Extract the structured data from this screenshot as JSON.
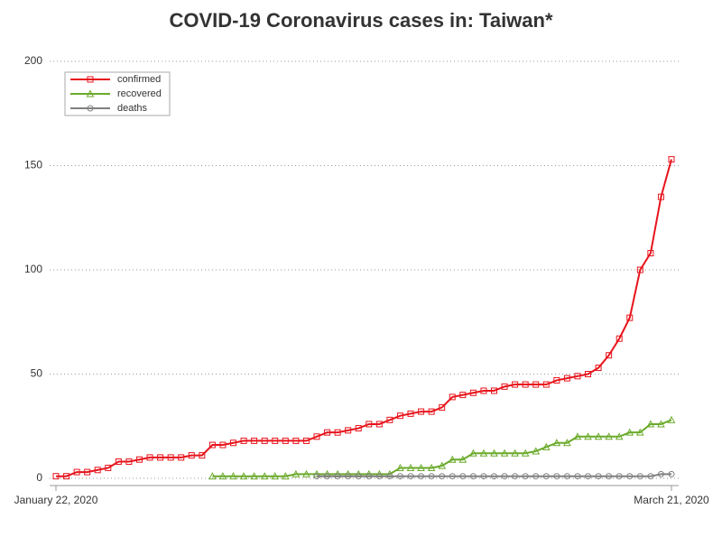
{
  "chart_data": {
    "type": "line",
    "title": "COVID-19 Coronavirus cases in: Taiwan*",
    "categories": [
      "January 22, 2020",
      null,
      null,
      null,
      null,
      null,
      null,
      null,
      null,
      null,
      null,
      null,
      null,
      null,
      null,
      null,
      null,
      null,
      null,
      null,
      null,
      null,
      null,
      null,
      null,
      null,
      null,
      null,
      null,
      null,
      null,
      null,
      null,
      null,
      null,
      null,
      null,
      null,
      null,
      null,
      null,
      null,
      null,
      null,
      null,
      null,
      null,
      null,
      null,
      null,
      null,
      null,
      null,
      null,
      null,
      null,
      null,
      null,
      null,
      "March 21, 2020"
    ],
    "series": [
      {
        "name": "confirmed",
        "color": "#e8141c",
        "marker": "square",
        "values": [
          1,
          1,
          3,
          3,
          4,
          5,
          8,
          8,
          9,
          10,
          10,
          10,
          10,
          11,
          11,
          16,
          16,
          17,
          18,
          18,
          18,
          18,
          18,
          18,
          18,
          20,
          22,
          22,
          23,
          24,
          26,
          26,
          28,
          30,
          31,
          32,
          32,
          34,
          39,
          40,
          41,
          42,
          42,
          44,
          45,
          45,
          45,
          45,
          47,
          48,
          49,
          50,
          53,
          59,
          67,
          77,
          100,
          108,
          135,
          153
        ]
      },
      {
        "name": "recovered",
        "color": "#6aaa2a",
        "marker": "triangle",
        "values": [
          null,
          null,
          null,
          null,
          null,
          null,
          null,
          null,
          null,
          null,
          null,
          null,
          null,
          null,
          null,
          1,
          1,
          1,
          1,
          1,
          1,
          1,
          1,
          2,
          2,
          2,
          2,
          2,
          2,
          2,
          2,
          2,
          2,
          5,
          5,
          5,
          5,
          6,
          9,
          9,
          12,
          12,
          12,
          12,
          12,
          12,
          13,
          15,
          17,
          17,
          20,
          20,
          20,
          20,
          20,
          22,
          22,
          26,
          26,
          28
        ]
      },
      {
        "name": "deaths",
        "color": "#808080",
        "marker": "circle",
        "values": [
          null,
          null,
          null,
          null,
          null,
          null,
          null,
          null,
          null,
          null,
          null,
          null,
          null,
          null,
          null,
          null,
          null,
          null,
          null,
          null,
          null,
          null,
          null,
          null,
          null,
          1,
          1,
          1,
          1,
          1,
          1,
          1,
          1,
          1,
          1,
          1,
          1,
          1,
          1,
          1,
          1,
          1,
          1,
          1,
          1,
          1,
          1,
          1,
          1,
          1,
          1,
          1,
          1,
          1,
          1,
          1,
          1,
          1,
          2,
          2
        ]
      }
    ],
    "ylim": [
      0,
      200
    ],
    "yticks": [
      0,
      50,
      100,
      150,
      200
    ],
    "grid": true,
    "legend": "top-left"
  }
}
